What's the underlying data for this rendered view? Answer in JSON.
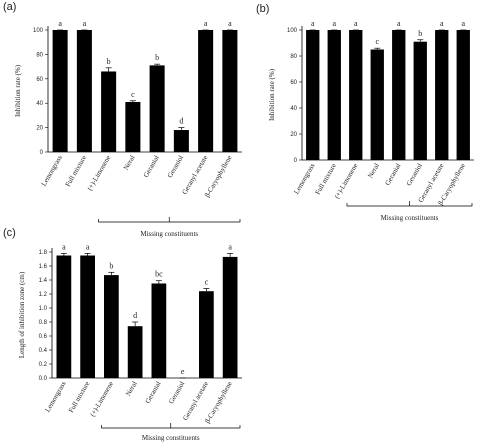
{
  "chart_data": [
    {
      "type": "bar",
      "panel": "(a)",
      "ylabel": "Inhibition rate (%)",
      "group_label": "Missing constituents",
      "categories": [
        "Lemongrass",
        "Full mixture",
        "(+)-Limonene",
        "Neral",
        "Geranial",
        "Geraniol",
        "Geranyl acetate",
        "β-Caryophyllene"
      ],
      "values": [
        100,
        100,
        66,
        41,
        71,
        18,
        100,
        100
      ],
      "errors": [
        0,
        0,
        3,
        1,
        1,
        2,
        0,
        0
      ],
      "letters": [
        "a",
        "a",
        "b",
        "c",
        "b",
        "d",
        "a",
        "a"
      ],
      "color": "#000000",
      "ylim": [
        0,
        100
      ],
      "yticks": [
        0,
        20,
        40,
        60,
        80,
        100
      ]
    },
    {
      "type": "bar",
      "panel": "(b)",
      "ylabel": "Inhibition rate (%)",
      "group_label": "Missing constituents",
      "categories": [
        "Lemongrass",
        "Full mixture",
        "(+)-Limonene",
        "Neral",
        "Geranial",
        "Geraniol",
        "Geranyl acetate",
        "β-Caryophyllene"
      ],
      "values": [
        100,
        100,
        100,
        85,
        100,
        91,
        100,
        100
      ],
      "errors": [
        0,
        0,
        0,
        1,
        0,
        1.5,
        0,
        0
      ],
      "letters": [
        "a",
        "a",
        "a",
        "c",
        "a",
        "b",
        "a",
        "a"
      ],
      "color": "#000000",
      "ylim": [
        0,
        100
      ],
      "yticks": [
        0,
        20,
        40,
        60,
        80,
        100
      ]
    },
    {
      "type": "bar",
      "panel": "(c)",
      "ylabel": "Length of inhibition zone (cm)",
      "group_label": "Missing constituents",
      "categories": [
        "Lemongrass",
        "Full mixture",
        "(+)-Limonene",
        "Neral",
        "Geranial",
        "Geraniol",
        "Geranyl acetate",
        "β-Caryophyllene"
      ],
      "values": [
        1.75,
        1.75,
        1.47,
        0.74,
        1.35,
        0,
        1.24,
        1.73
      ],
      "errors": [
        0.03,
        0.03,
        0.04,
        0.06,
        0.04,
        0,
        0.04,
        0.05
      ],
      "letters": [
        "a",
        "a",
        "b",
        "d",
        "bc",
        "e",
        "c",
        "a"
      ],
      "color": "#000000",
      "ylim": [
        0,
        1.8
      ],
      "yticks": [
        {
          "value": 0,
          "label": "0.0"
        },
        0.2,
        0.4,
        0.6,
        0.8,
        {
          "value": 1,
          "label": "1.0"
        },
        1.2,
        1.4,
        1.6,
        1.8
      ]
    }
  ]
}
